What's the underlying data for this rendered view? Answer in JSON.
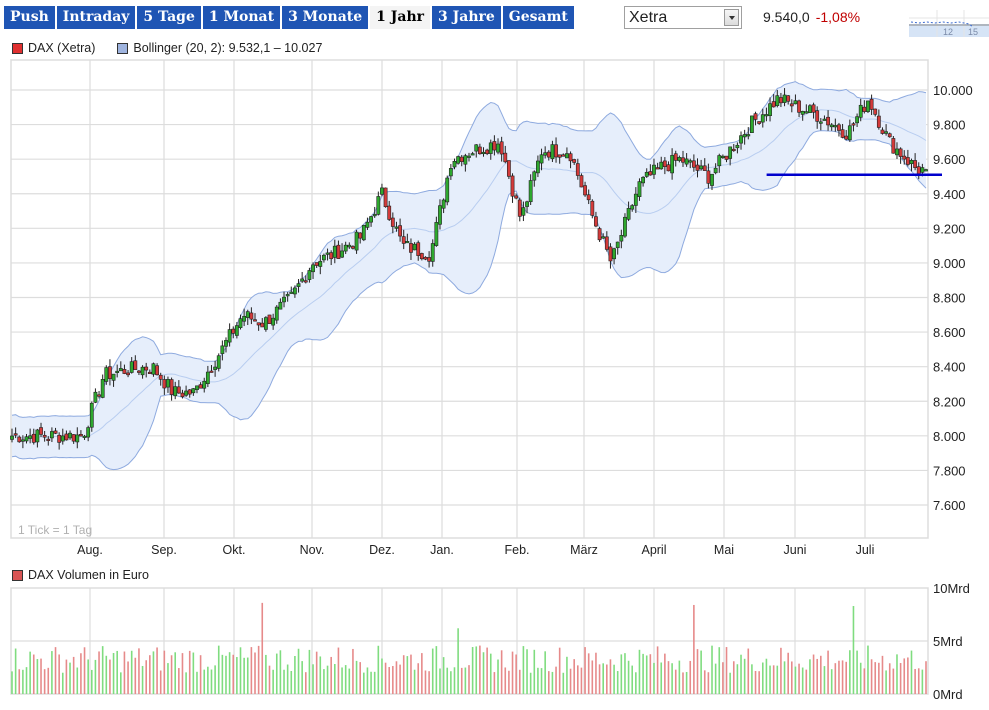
{
  "tabs": [
    {
      "label": "Push",
      "active": false
    },
    {
      "label": "Intraday",
      "active": false
    },
    {
      "label": "5 Tage",
      "active": false
    },
    {
      "label": "1 Monat",
      "active": false
    },
    {
      "label": "3 Monate",
      "active": false
    },
    {
      "label": "1 Jahr",
      "active": true
    },
    {
      "label": "3 Jahre",
      "active": false
    },
    {
      "label": "Gesamt",
      "active": false
    }
  ],
  "exchange_select": {
    "value": "Xetra"
  },
  "quote": {
    "price": "9.540,0",
    "change": "-1,08%",
    "change_color": "#c00000"
  },
  "sparkline": {
    "labels": [
      "12",
      "15"
    ]
  },
  "legend": {
    "main": "DAX (Xetra)",
    "main_color": "#e03030",
    "bollinger": "Bollinger (20, 2): 9.532,1 – 10.027",
    "bollinger_color": "#9fb4df",
    "volume": "DAX Volumen in Euro",
    "volume_color": "#d85555"
  },
  "tick_note": "1 Tick = 1 Tag",
  "colors": {
    "up": "#2ea82e",
    "down": "#d43a3a",
    "band_fill": "#e6eefb",
    "band_line": "#8eaadf",
    "support_line": "#0000cc",
    "vol_up": "#7fdc7f",
    "vol_down": "#e68a8a",
    "grid": "#dddddd"
  },
  "chart_data": [
    {
      "type": "candlestick",
      "title": "DAX (Xetra)",
      "xlabel": "",
      "ylabel": "",
      "x_tick_labels": [
        "Aug.",
        "Sep.",
        "Okt.",
        "Nov.",
        "Dez.",
        "Jan.",
        "Feb.",
        "März",
        "April",
        "Mai",
        "Juni",
        "Juli"
      ],
      "y_tick_labels": [
        "10.000",
        "9.800",
        "9.600",
        "9.400",
        "9.200",
        "9.000",
        "8.800",
        "8.600",
        "8.400",
        "8.200",
        "8.000",
        "7.800",
        "7.600"
      ],
      "ylim": [
        7500,
        10100
      ],
      "grid": true,
      "approx_close_path": {
        "x_month_index": [
          0,
          0.3,
          0.6,
          1.0,
          1.3,
          1.6,
          2.0,
          2.3,
          2.6,
          3.0,
          3.3,
          3.6,
          4.0,
          4.3,
          4.6,
          5.0,
          5.3,
          5.6,
          6.0,
          6.3,
          6.6,
          7.0,
          7.3,
          7.6,
          8.0,
          8.3,
          8.6,
          9.0,
          9.3,
          9.6,
          10.0,
          10.3,
          10.6,
          11.0,
          11.3,
          11.6,
          12.0
        ],
        "close": [
          8000,
          8350,
          8380,
          8400,
          8250,
          8250,
          8500,
          8700,
          8650,
          8800,
          9000,
          9050,
          9150,
          9400,
          9100,
          9050,
          9600,
          9650,
          9700,
          9250,
          9650,
          9650,
          9300,
          9000,
          9450,
          9550,
          9600,
          9500,
          9650,
          9800,
          9950,
          9900,
          9850,
          9750,
          9950,
          9700,
          9540
        ]
      },
      "bollinger": {
        "period": 20,
        "stddev": 2,
        "upper_last": 10027,
        "lower_last": 9532.1
      },
      "support_line": {
        "value": 9510,
        "from_month_index": 9.6,
        "to_month_index": 12.2
      },
      "last_close": 9540.0,
      "change_pct": -1.08
    },
    {
      "type": "bar",
      "title": "DAX Volumen in Euro",
      "y_tick_labels": [
        "10Mrd",
        "5Mrd",
        "0Mrd"
      ],
      "ylim": [
        0,
        10
      ],
      "unit": "Mrd EUR",
      "typical_range": [
        2,
        4
      ],
      "notable_spikes": [
        {
          "approx_month_index": 2.6,
          "value": 8.6,
          "direction": "down"
        },
        {
          "approx_month_index": 5.4,
          "value": 6.2,
          "direction": "up"
        },
        {
          "approx_month_index": 8.8,
          "value": 8.4,
          "direction": "up"
        },
        {
          "approx_month_index": 11.1,
          "value": 8.3,
          "direction": "down"
        }
      ]
    }
  ]
}
